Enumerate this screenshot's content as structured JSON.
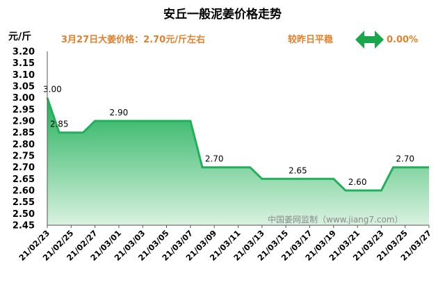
{
  "header": {
    "title": "安丘一般泥姜价格走势",
    "unit": "元/斤",
    "price_note": "3月27日大姜价格：2.70元/斤左右",
    "change_label": "较昨日平稳",
    "change_value": "0.00%",
    "change_icon": "double-arrow-icon"
  },
  "watermark": "中国姜网监制（www.jiang7.com）",
  "colors": {
    "accent": "#e2802b",
    "line": "#21b05a",
    "fill_top": "#21b05a",
    "fill_bottom": "#d9f2e0",
    "arrow": "#1aa64a"
  },
  "chart_data": {
    "type": "area",
    "title": "安丘一般泥姜价格走势",
    "ylabel": "元/斤",
    "ylim": [
      2.45,
      3.2
    ],
    "ytick_step": 0.05,
    "xlim": [
      "21/02/23",
      "21/03/27"
    ],
    "x_tick_labels": [
      "21/02/23",
      "21/02/25",
      "21/02/27",
      "21/03/01",
      "21/03/03",
      "21/03/05",
      "21/03/07",
      "21/03/09",
      "21/03/11",
      "21/03/13",
      "21/03/15",
      "21/03/17",
      "21/03/19",
      "21/03/21",
      "21/03/23",
      "21/03/25",
      "21/03/27"
    ],
    "x": [
      "21/02/23",
      "21/02/24",
      "21/02/25",
      "21/02/26",
      "21/02/27",
      "21/02/28",
      "21/03/01",
      "21/03/02",
      "21/03/03",
      "21/03/04",
      "21/03/05",
      "21/03/06",
      "21/03/07",
      "21/03/08",
      "21/03/09",
      "21/03/10",
      "21/03/11",
      "21/03/12",
      "21/03/13",
      "21/03/14",
      "21/03/15",
      "21/03/16",
      "21/03/17",
      "21/03/18",
      "21/03/19",
      "21/03/20",
      "21/03/21",
      "21/03/22",
      "21/03/23",
      "21/03/24",
      "21/03/25",
      "21/03/26",
      "21/03/27"
    ],
    "series": [
      {
        "values": [
          3.0,
          2.85,
          2.85,
          2.85,
          2.9,
          2.9,
          2.9,
          2.9,
          2.9,
          2.9,
          2.9,
          2.9,
          2.9,
          2.7,
          2.7,
          2.7,
          2.7,
          2.7,
          2.65,
          2.65,
          2.65,
          2.65,
          2.65,
          2.65,
          2.65,
          2.6,
          2.6,
          2.6,
          2.6,
          2.7,
          2.7,
          2.7,
          2.7
        ]
      }
    ],
    "data_labels": [
      {
        "x": "21/02/23",
        "text": "3.00"
      },
      {
        "x": "21/02/24",
        "text": "2.85"
      },
      {
        "x": "21/03/01",
        "text": "2.90"
      },
      {
        "x": "21/03/09",
        "text": "2.70"
      },
      {
        "x": "21/03/16",
        "text": "2.65"
      },
      {
        "x": "21/03/21",
        "text": "2.60"
      },
      {
        "x": "21/03/25",
        "text": "2.70"
      }
    ],
    "grid": false,
    "legend": "none"
  }
}
